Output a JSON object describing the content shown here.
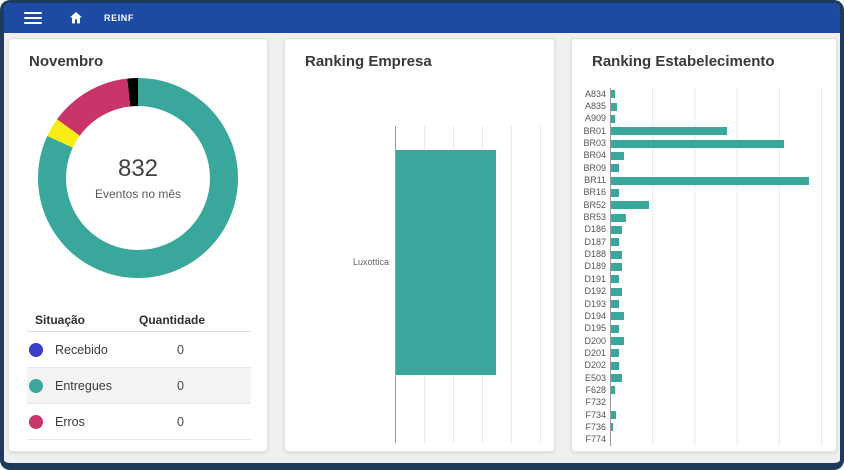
{
  "navbar": {
    "brand": "REINF",
    "bg_color": "#1d4ba3"
  },
  "colors": {
    "teal": "#39a79b",
    "pink": "#c9356a",
    "yellow": "#f7ec13",
    "black": "#000000",
    "blue_dot": "#3a3fc8",
    "frame": "#1e3a5c"
  },
  "cards": {
    "novembro": {
      "title": "Novembro",
      "donut_center_value": "832",
      "donut_center_label": "Eventos no mês",
      "table": {
        "headers": [
          "Situação",
          "Quantidade"
        ],
        "rows": [
          {
            "dot_color": "#3a3fc8",
            "label": "Recebido",
            "qty": "0",
            "highlighted": false
          },
          {
            "dot_color": "#39a79b",
            "label": "Entregues",
            "qty": "0",
            "highlighted": true
          },
          {
            "dot_color": "#c9356a",
            "label": "Erros",
            "qty": "0",
            "highlighted": false
          }
        ]
      }
    },
    "empresa": {
      "title": "Ranking Empresa"
    },
    "estabelecimento": {
      "title": "Ranking Estabelecimento"
    }
  },
  "chart_data": [
    {
      "type": "pie",
      "subtype": "donut",
      "title": "Novembro",
      "center_value": 832,
      "center_label": "Eventos no mês",
      "slices": [
        {
          "label": "Entregues (teal)",
          "color": "#39a79b",
          "percent": 81.9
        },
        {
          "label": "yellow segment",
          "color": "#f7ec13",
          "percent": 3.1
        },
        {
          "label": "Erros (pink)",
          "color": "#c9356a",
          "percent": 13.3
        },
        {
          "label": "black segment",
          "color": "#000000",
          "percent": 1.7
        }
      ],
      "clockwise_from_top": true,
      "legend_table": {
        "Recebido": 0,
        "Entregues": 0,
        "Erros": 0
      }
    },
    {
      "type": "bar",
      "orientation": "horizontal",
      "title": "Ranking Empresa",
      "categories": [
        "Luxottica"
      ],
      "values_fraction_of_axis": [
        0.69
      ],
      "xlim": [
        0,
        1
      ],
      "x_tick_labels_visible": false,
      "gridline_count": 5,
      "bar_color": "#39a79b"
    },
    {
      "type": "bar",
      "orientation": "horizontal",
      "title": "Ranking Estabelecimento",
      "note": "axis unlabeled; values estimated, one gridline = 20 units, xmax = 100",
      "xlim": [
        0,
        100
      ],
      "gridline_interval": 20,
      "bar_color": "#39a79b",
      "categories": [
        "A834",
        "A835",
        "A909",
        "BR01",
        "BR03",
        "BR04",
        "BR09",
        "BR11",
        "BR16",
        "BR52",
        "BR53",
        "D186",
        "D187",
        "D188",
        "D189",
        "D191",
        "D192",
        "D193",
        "D194",
        "D195",
        "D200",
        "D201",
        "D202",
        "E503",
        "F628",
        "F732",
        "F734",
        "F736",
        "F774"
      ],
      "values": [
        2,
        3,
        2,
        55,
        82,
        6,
        4,
        94,
        4,
        18,
        7,
        5,
        4,
        5,
        5,
        4,
        5,
        4,
        6,
        4,
        6,
        4,
        4,
        5,
        2,
        0,
        2.5,
        1,
        0
      ]
    }
  ]
}
